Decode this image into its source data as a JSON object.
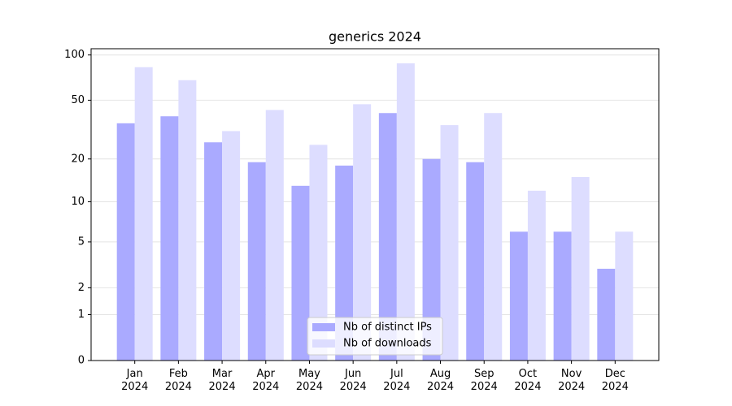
{
  "chart_data": {
    "type": "bar",
    "title": "generics 2024",
    "yscale": "log1p",
    "categories": [
      "Jan\n2024",
      "Feb\n2024",
      "Mar\n2024",
      "Apr\n2024",
      "May\n2024",
      "Jun\n2024",
      "Jul\n2024",
      "Aug\n2024",
      "Sep\n2024",
      "Oct\n2024",
      "Nov\n2024",
      "Dec\n2024"
    ],
    "series": [
      {
        "name": "Nb of distinct IPs",
        "color": "#aaaaff",
        "values": [
          35,
          39,
          26,
          19,
          13,
          18,
          41,
          20,
          19,
          6,
          6,
          3
        ]
      },
      {
        "name": "Nb of downloads",
        "color": "#ddddff",
        "values": [
          83,
          68,
          31,
          43,
          25,
          47,
          88,
          34,
          41,
          12,
          15,
          6
        ]
      }
    ],
    "ylim": [
      0,
      110
    ],
    "yticks": [
      0,
      1,
      2,
      5,
      10,
      20,
      50,
      100
    ],
    "grid": true,
    "legend": "lower center"
  }
}
